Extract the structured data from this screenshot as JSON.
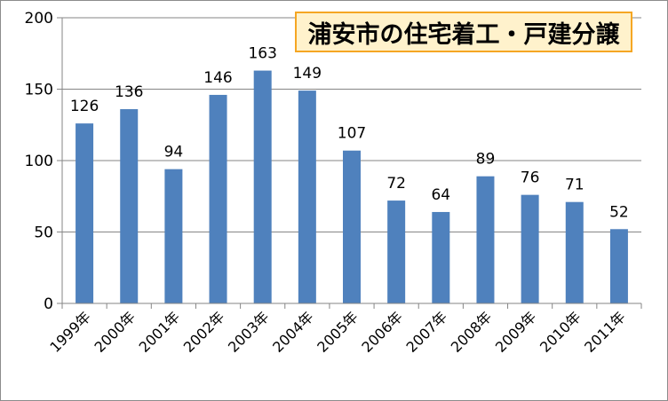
{
  "chart_data": {
    "type": "bar",
    "title": "浦安市の住宅着工・戸建分譲",
    "categories": [
      "1999年",
      "2000年",
      "2001年",
      "2002年",
      "2003年",
      "2004年",
      "2005年",
      "2006年",
      "2007年",
      "2008年",
      "2009年",
      "2010年",
      "2011年"
    ],
    "values": [
      126,
      136,
      94,
      146,
      163,
      149,
      107,
      72,
      64,
      89,
      76,
      71,
      52
    ],
    "ylim": [
      0,
      200
    ],
    "yticks": [
      0,
      50,
      100,
      150,
      200
    ],
    "grid": true,
    "bar_color": "#4f81bd",
    "data_labels": true
  },
  "colors": {
    "title_background": "#fff2cc",
    "title_border": "#f5a623",
    "gridline": "#868686"
  }
}
